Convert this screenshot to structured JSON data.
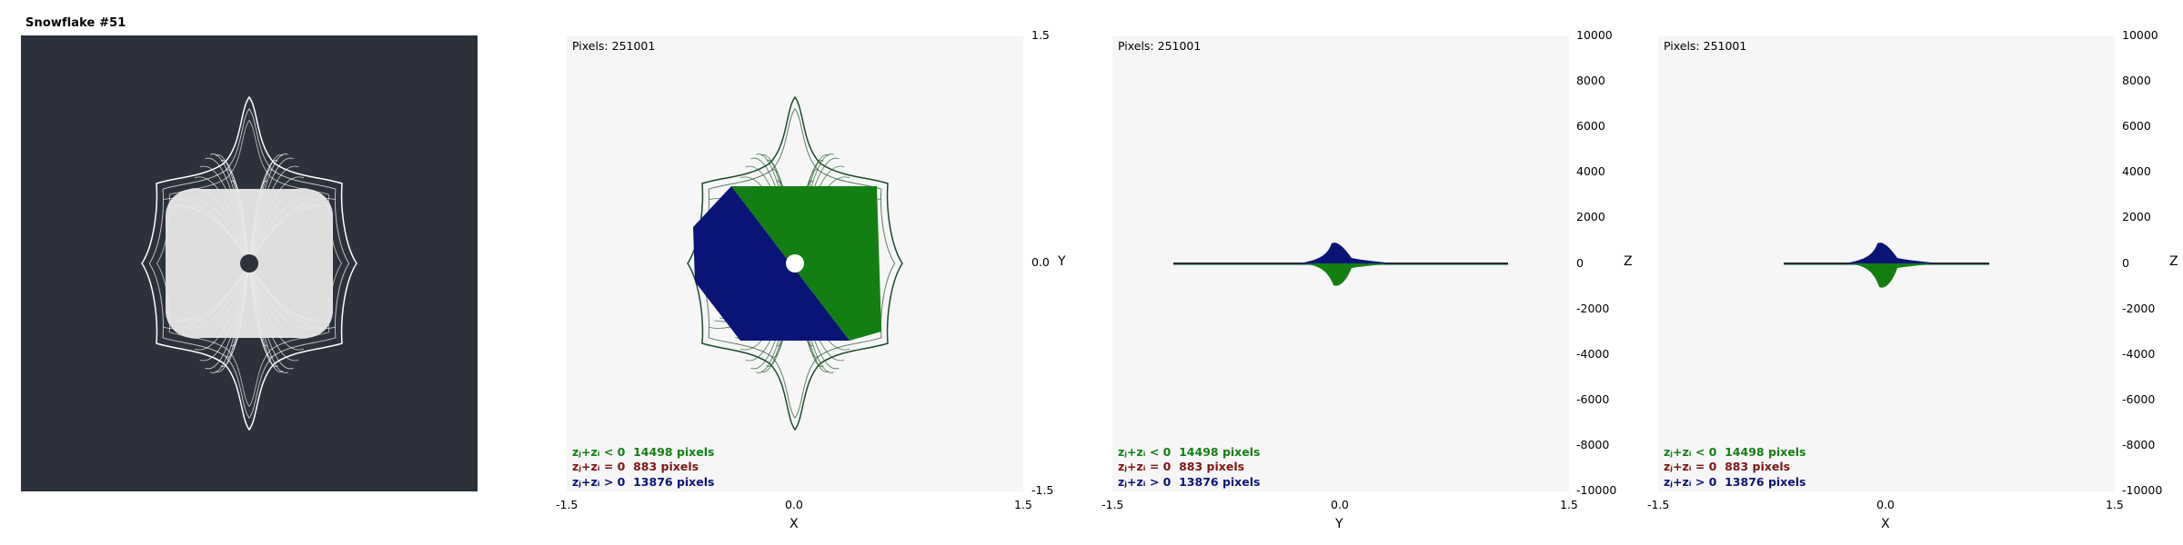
{
  "snowflake_panel": {
    "title": "Snowflake #51",
    "background": "#2c313b",
    "flake_color": "#ffffff"
  },
  "colors": {
    "negative": "#137f13",
    "zero": "#7b1717",
    "positive": "#0a1476",
    "plot_background": "#f6f6f6"
  },
  "plots": [
    {
      "id": "xy",
      "pixels_label": "Pixels: 251001",
      "legend": [
        {
          "label": "zⱼ+zᵢ < 0",
          "value": "14498 pixels",
          "color": "#137f13"
        },
        {
          "label": "zⱼ+zᵢ = 0",
          "value": "883 pixels",
          "color": "#7b1717"
        },
        {
          "label": "zⱼ+zᵢ > 0",
          "value": "13876 pixels",
          "color": "#0a1476"
        }
      ],
      "x_ticks": [
        "-1.5",
        "0.0",
        "1.5"
      ],
      "x_title": "X",
      "right_ticks": [
        "1.5",
        "0.0",
        "-1.5"
      ],
      "right_title": "Y"
    },
    {
      "id": "yz",
      "pixels_label": "Pixels: 251001",
      "legend": [
        {
          "label": "zⱼ+zᵢ < 0",
          "value": "14498 pixels",
          "color": "#137f13"
        },
        {
          "label": "zⱼ+zᵢ = 0",
          "value": "883 pixels",
          "color": "#7b1717"
        },
        {
          "label": "zⱼ+zᵢ > 0",
          "value": "13876 pixels",
          "color": "#0a1476"
        }
      ],
      "x_ticks": [
        "-1.5",
        "0.0",
        "1.5"
      ],
      "x_title": "Y",
      "right_ticks": [
        "10000",
        "8000",
        "6000",
        "4000",
        "2000",
        "0",
        "-2000",
        "-4000",
        "-6000",
        "-8000",
        "-10000"
      ],
      "right_title": "Z"
    },
    {
      "id": "xz",
      "pixels_label": "Pixels: 251001",
      "legend": [
        {
          "label": "zⱼ+zᵢ < 0",
          "value": "14498 pixels",
          "color": "#137f13"
        },
        {
          "label": "zⱼ+zᵢ = 0",
          "value": "883 pixels",
          "color": "#7b1717"
        },
        {
          "label": "zⱼ+zᵢ > 0",
          "value": "13876 pixels",
          "color": "#0a1476"
        }
      ],
      "x_ticks": [
        "-1.5",
        "0.0",
        "1.5"
      ],
      "x_title": "X",
      "right_ticks": [
        "10000",
        "8000",
        "6000",
        "4000",
        "2000",
        "0",
        "-2000",
        "-4000",
        "-6000",
        "-8000",
        "-10000"
      ],
      "right_title": "Z"
    }
  ]
}
